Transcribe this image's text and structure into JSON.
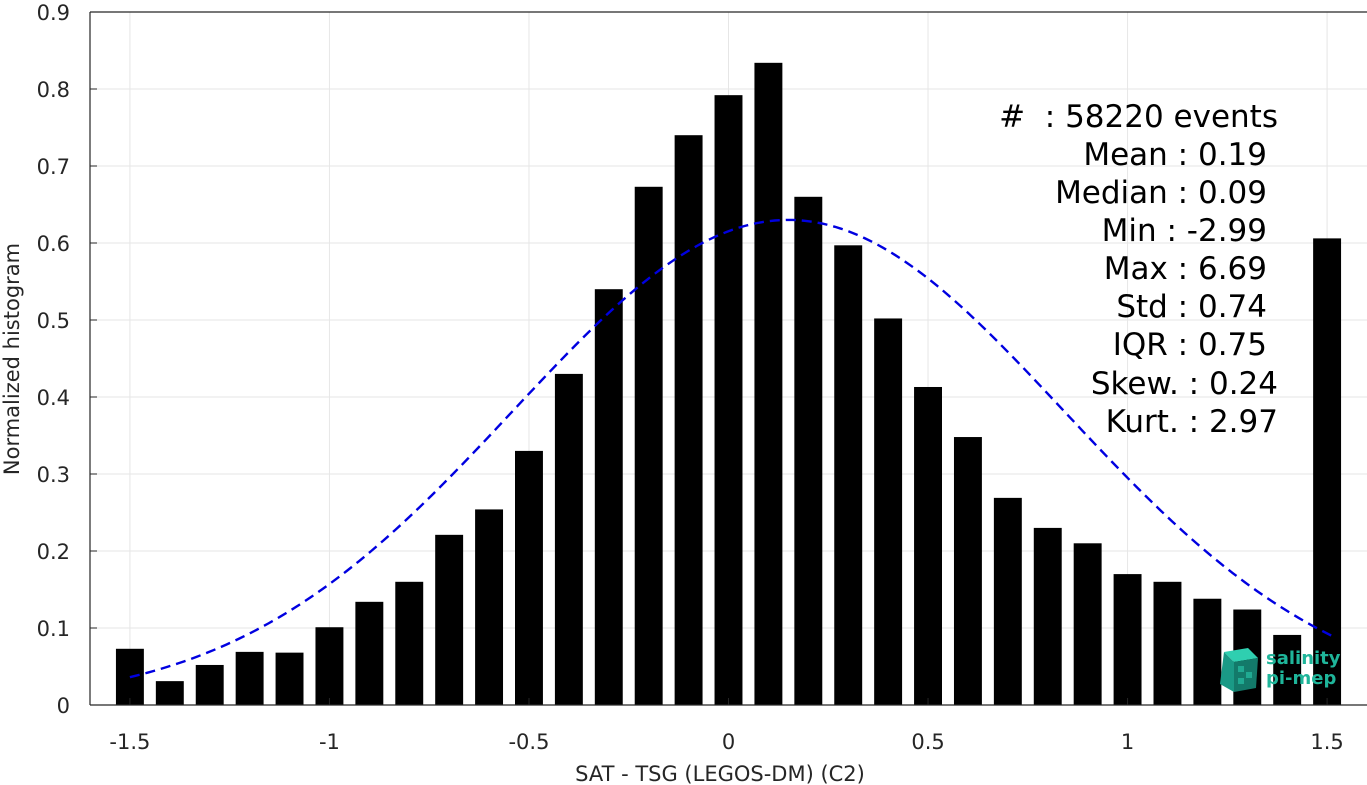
{
  "chart_data": {
    "type": "bar",
    "xlabel": "SAT - TSG (LEGOS-DM) (C2)",
    "ylabel": "Normalized histogram",
    "xlim": [
      -1.6,
      1.6
    ],
    "ylim": [
      0,
      0.9
    ],
    "x_ticks": [
      -1.5,
      -1,
      -0.5,
      0,
      0.5,
      1,
      1.5
    ],
    "x_tick_labels": [
      "-1.5",
      "-1",
      "-0.5",
      "0",
      "0.5",
      "1",
      "1.5"
    ],
    "y_ticks": [
      0,
      0.1,
      0.2,
      0.3,
      0.4,
      0.5,
      0.6,
      0.7,
      0.8,
      0.9
    ],
    "y_tick_labels": [
      "0",
      "0.1",
      "0.2",
      "0.3",
      "0.4",
      "0.5",
      "0.6",
      "0.7",
      "0.8",
      "0.9"
    ],
    "grid": true,
    "bar_width": 0.07,
    "bins": [
      {
        "x": -1.5,
        "y": 0.073
      },
      {
        "x": -1.4,
        "y": 0.031
      },
      {
        "x": -1.3,
        "y": 0.052
      },
      {
        "x": -1.2,
        "y": 0.069
      },
      {
        "x": -1.1,
        "y": 0.068
      },
      {
        "x": -1.0,
        "y": 0.101
      },
      {
        "x": -0.9,
        "y": 0.134
      },
      {
        "x": -0.8,
        "y": 0.16
      },
      {
        "x": -0.7,
        "y": 0.221
      },
      {
        "x": -0.6,
        "y": 0.254
      },
      {
        "x": -0.5,
        "y": 0.33
      },
      {
        "x": -0.4,
        "y": 0.43
      },
      {
        "x": -0.3,
        "y": 0.54
      },
      {
        "x": -0.2,
        "y": 0.673
      },
      {
        "x": -0.1,
        "y": 0.74
      },
      {
        "x": 0.0,
        "y": 0.792
      },
      {
        "x": 0.1,
        "y": 0.834
      },
      {
        "x": 0.2,
        "y": 0.66
      },
      {
        "x": 0.3,
        "y": 0.597
      },
      {
        "x": 0.4,
        "y": 0.502
      },
      {
        "x": 0.5,
        "y": 0.413
      },
      {
        "x": 0.6,
        "y": 0.348
      },
      {
        "x": 0.7,
        "y": 0.269
      },
      {
        "x": 0.8,
        "y": 0.23
      },
      {
        "x": 0.9,
        "y": 0.21
      },
      {
        "x": 1.0,
        "y": 0.17
      },
      {
        "x": 1.1,
        "y": 0.16
      },
      {
        "x": 1.2,
        "y": 0.138
      },
      {
        "x": 1.3,
        "y": 0.124
      },
      {
        "x": 1.4,
        "y": 0.091
      },
      {
        "x": 1.5,
        "y": 0.606
      }
    ],
    "gaussian_fit": {
      "mean": 0.15,
      "std": 0.69,
      "peak": 0.63,
      "x_range": [
        -1.5,
        1.52
      ]
    },
    "colors": {
      "bars": "#000000",
      "fit_line": "#0000e0",
      "grid": "#e6e6e6",
      "axes": "#262626"
    }
  },
  "stats": {
    "count": "#  : 58220 events",
    "mean": "Mean : 0.19",
    "median": "Median : 0.09",
    "min": "Min : -2.99",
    "max": "Max : 6.69",
    "std": "Std : 0.74",
    "iqr": "IQR : 0.75",
    "skew": "Skew. : 0.24",
    "kurt": "Kurt. : 2.97"
  },
  "logo": {
    "line1": "salinity",
    "line2": "pi-mep",
    "color": "#1fb59a",
    "icon": "cube-logo-icon"
  }
}
